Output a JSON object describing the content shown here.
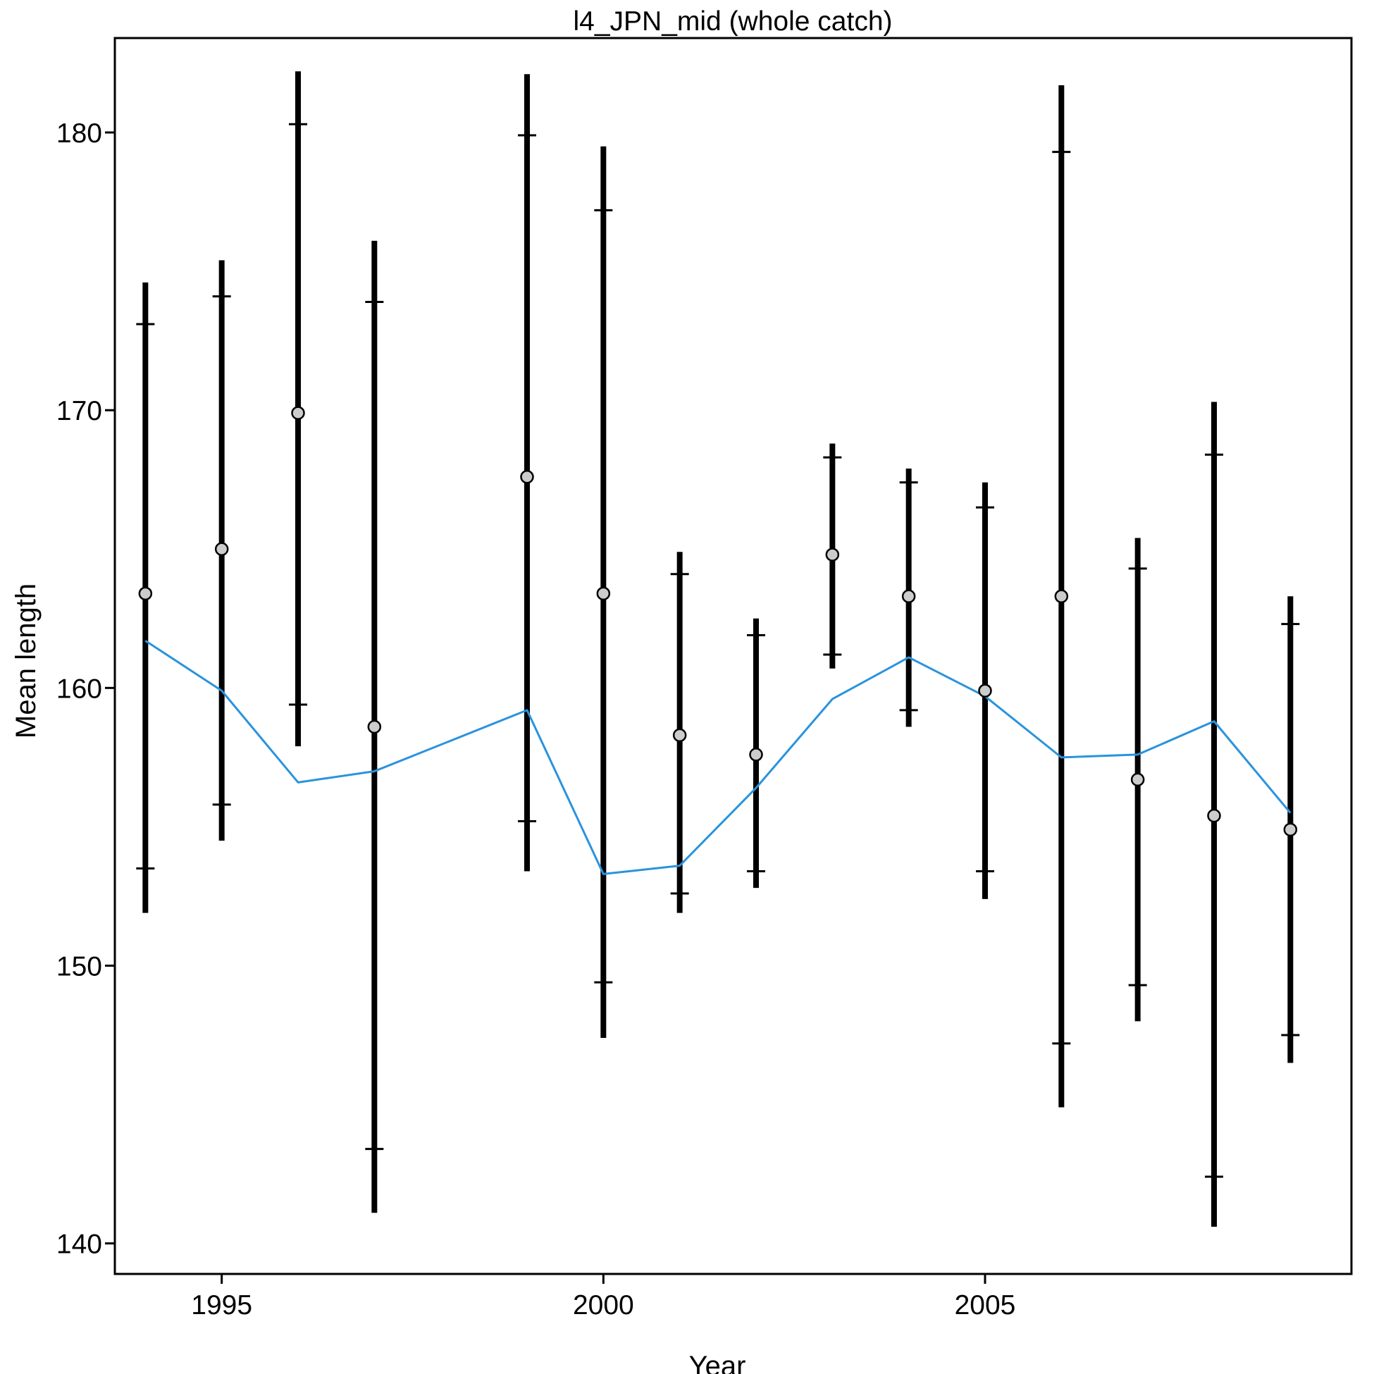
{
  "chart_data": {
    "type": "line",
    "title": "l4_JPN_mid (whole catch)",
    "xlabel": "Year",
    "ylabel": "Mean length",
    "xlim": [
      1993.6,
      2009.8
    ],
    "ylim": [
      138.9,
      183.4
    ],
    "x_ticks": [
      1995,
      2000,
      2005
    ],
    "y_ticks": [
      140,
      150,
      160,
      170,
      180
    ],
    "grid": false,
    "legend": "none",
    "colors": {
      "observed_points_fill": "#cccccc",
      "error_bars": "#000000",
      "expected_line": "#2a93dd"
    },
    "years": [
      1994,
      1995,
      1996,
      1997,
      1999,
      2000,
      2001,
      2002,
      2003,
      2004,
      2005,
      2006,
      2007,
      2008,
      2009
    ],
    "series": [
      {
        "role": "observed",
        "values": [
          163.4,
          165.0,
          169.9,
          158.6,
          167.6,
          163.4,
          158.3,
          157.6,
          164.8,
          163.3,
          159.9,
          163.3,
          156.7,
          155.4,
          154.9
        ]
      },
      {
        "role": "expected",
        "values": [
          161.7,
          159.9,
          156.6,
          157.0,
          159.2,
          153.3,
          153.6,
          156.4,
          159.6,
          161.1,
          159.7,
          157.5,
          157.6,
          158.8,
          155.5
        ]
      }
    ],
    "intervals": {
      "outer_low": [
        151.9,
        154.5,
        157.9,
        141.1,
        153.4,
        147.4,
        151.9,
        152.8,
        160.7,
        158.6,
        152.4,
        144.9,
        148.0,
        140.6,
        146.5
      ],
      "outer_high": [
        174.6,
        175.4,
        182.2,
        176.1,
        182.1,
        179.5,
        164.9,
        162.5,
        168.8,
        167.9,
        167.4,
        181.7,
        165.4,
        170.3,
        163.3
      ],
      "inner_low": [
        153.5,
        155.8,
        159.4,
        143.4,
        155.2,
        149.4,
        152.6,
        153.4,
        161.2,
        159.2,
        153.4,
        147.2,
        149.3,
        142.4,
        147.5
      ],
      "inner_high": [
        173.1,
        174.1,
        180.3,
        173.9,
        179.9,
        177.2,
        164.1,
        161.9,
        168.3,
        167.4,
        166.5,
        179.3,
        164.3,
        168.4,
        162.3
      ]
    }
  }
}
